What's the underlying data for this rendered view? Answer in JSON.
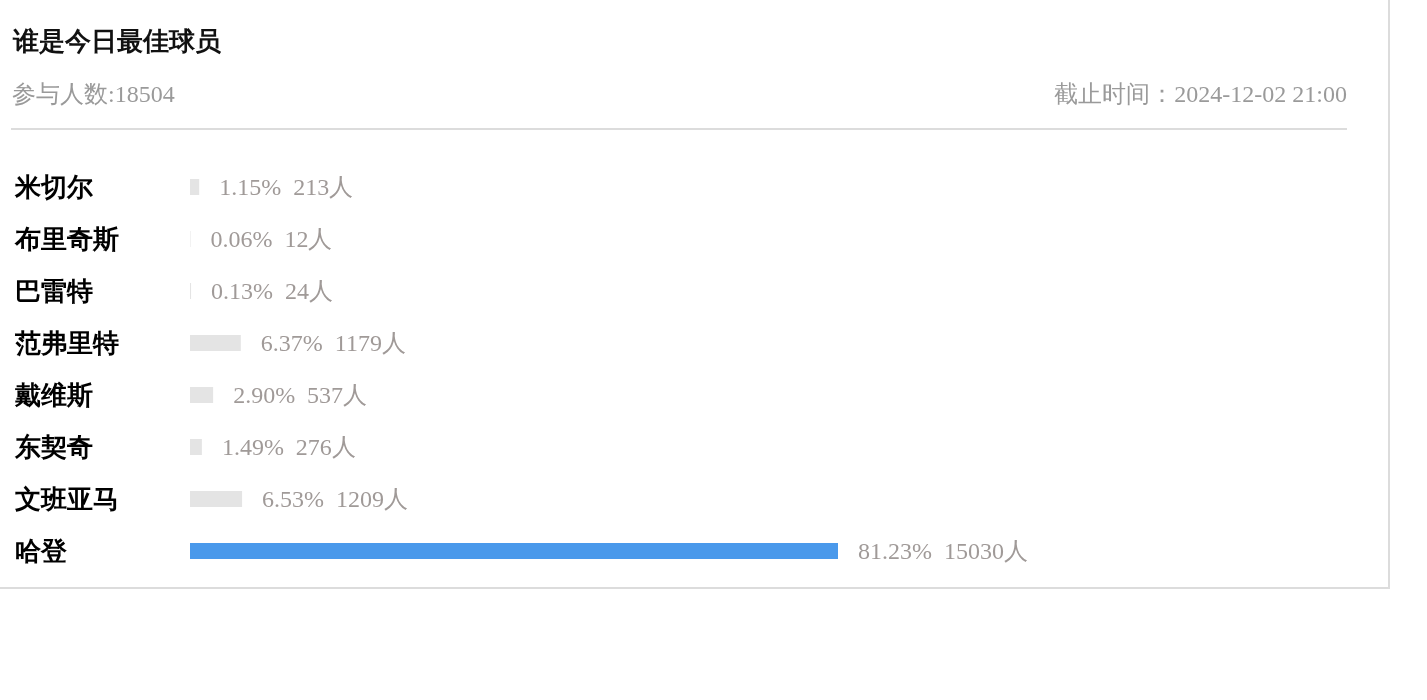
{
  "chart_data": {
    "type": "bar",
    "orientation": "horizontal",
    "title": "谁是今日最佳球员",
    "subtitle": "参与人数:18504",
    "annotations": [
      "截止时间：2024-12-02 21:00"
    ],
    "categories": [
      "米切尔",
      "布里奇斯",
      "巴雷特",
      "范弗里特",
      "戴维斯",
      "东契奇",
      "文班亚马",
      "哈登"
    ],
    "values": [
      1.15,
      0.06,
      0.13,
      6.37,
      2.9,
      1.49,
      6.53,
      81.23
    ],
    "colors": [
      "#e4e4e4",
      "#e4e4e4",
      "#e4e4e4",
      "#e4e4e4",
      "#e4e4e4",
      "#e4e4e4",
      "#e4e4e4",
      "#4a99eb"
    ],
    "value_labels": [
      "1.15%  213人",
      "0.06%  12人",
      "0.13%  24人",
      "6.37%  1179人",
      "2.90%  537人",
      "1.49%  276人",
      "6.53%  1209人",
      "81.23%  15030人"
    ]
  }
}
